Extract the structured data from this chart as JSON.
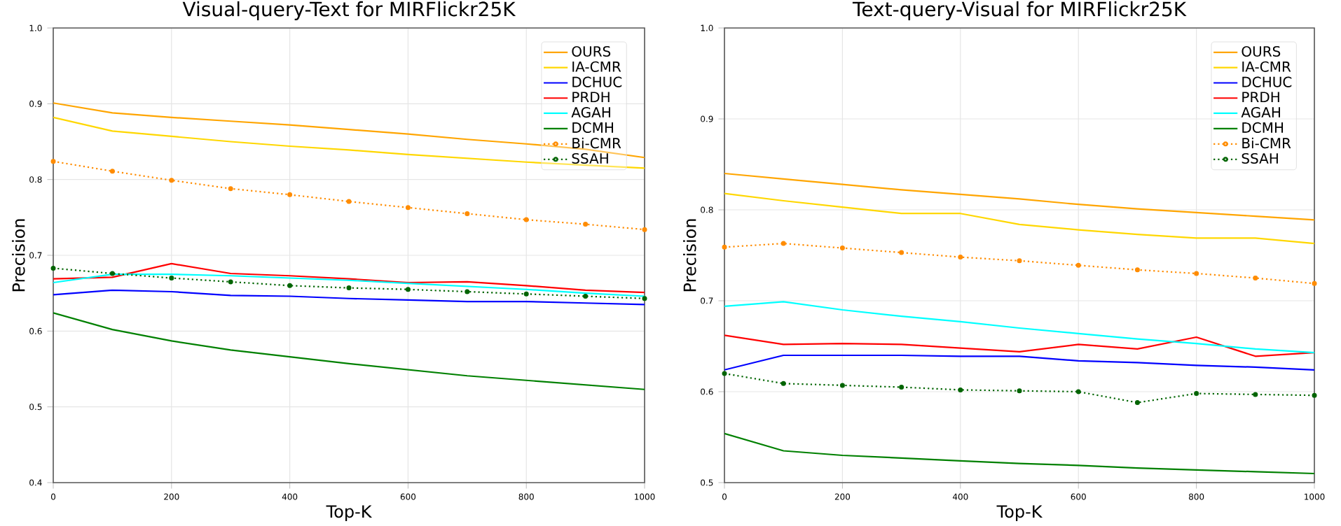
{
  "chart_data": [
    {
      "type": "line",
      "title": "Visual-query-Text for MIRFlickr25K",
      "xlabel": "Top-K",
      "ylabel": "Precision",
      "x": [
        0,
        100,
        200,
        300,
        400,
        500,
        600,
        700,
        800,
        900,
        1000
      ],
      "xlim": [
        0,
        1000
      ],
      "xticks": [
        0,
        200,
        400,
        600,
        800,
        1000
      ],
      "ylim": [
        0.4,
        1.0
      ],
      "yticks": [
        0.4,
        0.5,
        0.6,
        0.7,
        0.8,
        0.9,
        {
          "value": 1.0,
          "label": "1.0"
        }
      ],
      "grid": true,
      "legend": "top right",
      "series": [
        {
          "name": "OURS",
          "color": "#ffa500",
          "line_style": "solid",
          "marker": "none",
          "values": [
            0.901,
            0.888,
            0.882,
            0.877,
            0.872,
            0.866,
            0.86,
            0.853,
            0.847,
            0.84,
            0.829
          ]
        },
        {
          "name": "IA-CMR",
          "color": "#ffd700",
          "line_style": "solid",
          "marker": "none",
          "values": [
            0.882,
            0.864,
            0.857,
            0.85,
            0.844,
            0.839,
            0.833,
            0.828,
            0.823,
            0.819,
            0.815
          ]
        },
        {
          "name": "DCHUC",
          "color": "#0000ff",
          "line_style": "solid",
          "marker": "none",
          "values": [
            0.648,
            0.654,
            0.652,
            0.647,
            0.646,
            0.643,
            0.641,
            0.639,
            0.639,
            0.637,
            0.635
          ]
        },
        {
          "name": "PRDH",
          "color": "#ff0000",
          "line_style": "solid",
          "marker": "none",
          "values": [
            0.669,
            0.671,
            0.689,
            0.676,
            0.673,
            0.669,
            0.664,
            0.665,
            0.66,
            0.654,
            0.651
          ]
        },
        {
          "name": "AGAH",
          "color": "#00ffff",
          "line_style": "solid",
          "marker": "none",
          "values": [
            0.664,
            0.675,
            0.675,
            0.673,
            0.67,
            0.667,
            0.663,
            0.659,
            0.655,
            0.65,
            0.646
          ]
        },
        {
          "name": "DCMH",
          "color": "#008000",
          "line_style": "solid",
          "marker": "none",
          "values": [
            0.624,
            0.602,
            0.587,
            0.575,
            0.566,
            0.557,
            0.549,
            0.541,
            0.535,
            0.529,
            0.523
          ]
        },
        {
          "name": "Bi-CMR",
          "color": "#ff8c00",
          "line_style": "dotted",
          "marker": "circle",
          "values": [
            0.824,
            0.811,
            0.799,
            0.788,
            0.78,
            0.771,
            0.763,
            0.755,
            0.747,
            0.741,
            0.734
          ]
        },
        {
          "name": "SSAH",
          "color": "#006400",
          "line_style": "dotted",
          "marker": "circle",
          "values": [
            0.683,
            0.676,
            0.67,
            0.665,
            0.66,
            0.657,
            0.655,
            0.652,
            0.649,
            0.646,
            0.643
          ]
        }
      ]
    },
    {
      "type": "line",
      "title": "Text-query-Visual for MIRFlickr25K",
      "xlabel": "Top-K",
      "ylabel": "Precision",
      "x": [
        0,
        100,
        200,
        300,
        400,
        500,
        600,
        700,
        800,
        900,
        1000
      ],
      "xlim": [
        0,
        1000
      ],
      "xticks": [
        0,
        200,
        400,
        600,
        800,
        1000
      ],
      "ylim": [
        0.5,
        1.0
      ],
      "yticks": [
        0.5,
        0.6,
        0.7,
        0.8,
        0.9,
        {
          "value": 1.0,
          "label": "1.0"
        }
      ],
      "grid": true,
      "legend": "top right",
      "series": [
        {
          "name": "OURS",
          "color": "#ffa500",
          "line_style": "solid",
          "marker": "none",
          "values": [
            0.84,
            0.834,
            0.828,
            0.822,
            0.817,
            0.812,
            0.806,
            0.801,
            0.797,
            0.793,
            0.789
          ]
        },
        {
          "name": "IA-CMR",
          "color": "#ffd700",
          "line_style": "solid",
          "marker": "none",
          "values": [
            0.818,
            0.81,
            0.803,
            0.796,
            0.796,
            0.784,
            0.778,
            0.773,
            0.769,
            0.769,
            0.763
          ]
        },
        {
          "name": "DCHUC",
          "color": "#0000ff",
          "line_style": "solid",
          "marker": "none",
          "values": [
            0.624,
            0.64,
            0.64,
            0.64,
            0.639,
            0.639,
            0.634,
            0.632,
            0.629,
            0.627,
            0.624
          ]
        },
        {
          "name": "PRDH",
          "color": "#ff0000",
          "line_style": "solid",
          "marker": "none",
          "values": [
            0.662,
            0.652,
            0.653,
            0.652,
            0.648,
            0.644,
            0.652,
            0.647,
            0.66,
            0.639,
            0.643
          ]
        },
        {
          "name": "AGAH",
          "color": "#00ffff",
          "line_style": "solid",
          "marker": "none",
          "values": [
            0.694,
            0.699,
            0.69,
            0.683,
            0.677,
            0.67,
            0.664,
            0.658,
            0.653,
            0.647,
            0.643
          ]
        },
        {
          "name": "DCMH",
          "color": "#008000",
          "line_style": "solid",
          "marker": "none",
          "values": [
            0.554,
            0.535,
            0.53,
            0.527,
            0.524,
            0.521,
            0.519,
            0.516,
            0.514,
            0.512,
            0.51
          ]
        },
        {
          "name": "Bi-CMR",
          "color": "#ff8c00",
          "line_style": "dotted",
          "marker": "circle",
          "values": [
            0.759,
            0.763,
            0.758,
            0.753,
            0.748,
            0.744,
            0.739,
            0.734,
            0.73,
            0.725,
            0.719
          ]
        },
        {
          "name": "SSAH",
          "color": "#006400",
          "line_style": "dotted",
          "marker": "circle",
          "values": [
            0.62,
            0.609,
            0.607,
            0.605,
            0.602,
            0.601,
            0.6,
            0.588,
            0.598,
            0.597,
            0.596
          ]
        }
      ]
    }
  ]
}
